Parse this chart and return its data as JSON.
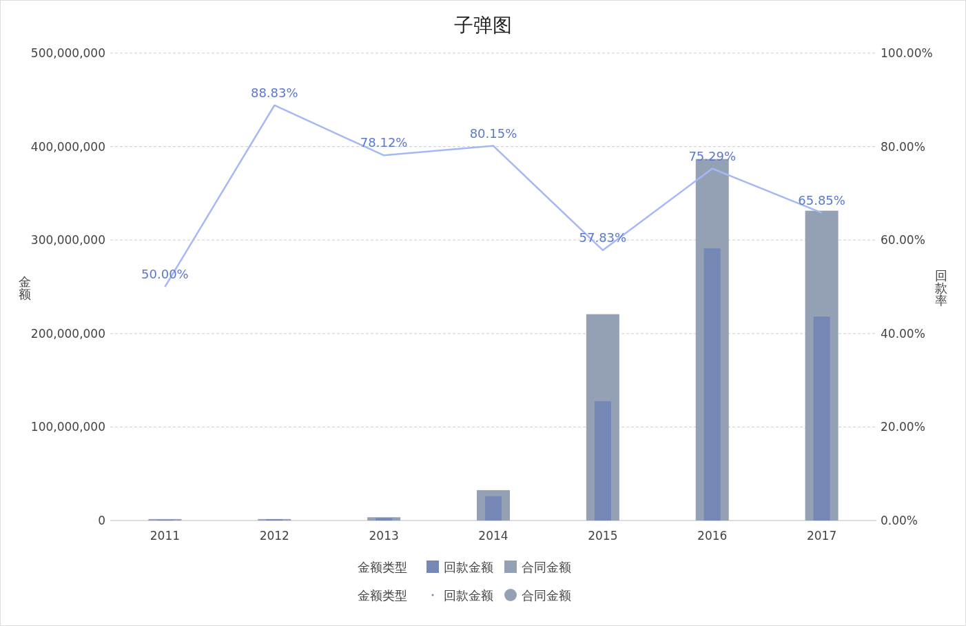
{
  "chart_data": {
    "type": "bar",
    "title": "子弹图",
    "ylabel": "金额",
    "y2label": "回款率",
    "legend_title": "金额类型",
    "legend": "bottom",
    "grid": "y",
    "categories": [
      "2011",
      "2012",
      "2013",
      "2014",
      "2015",
      "2016",
      "2017"
    ],
    "series": [
      {
        "name": "回款金额",
        "color": "#7588b5",
        "values": [
          800000,
          1400000,
          2700000,
          26000000,
          127600000,
          291100000,
          218200000
        ]
      },
      {
        "name": "合同金额",
        "color": "#94a0b3",
        "values": [
          1600000,
          1600000,
          3500000,
          32500000,
          220700000,
          386700000,
          331400000
        ]
      },
      {
        "type": "line",
        "axis": "y2",
        "color": "#a5b8f5",
        "values": [
          50.0,
          88.83,
          78.12,
          80.15,
          57.83,
          75.29,
          65.85
        ],
        "value_labels": [
          "50.00%",
          "88.83%",
          "78.12%",
          "80.15%",
          "57.83%",
          "75.29%",
          "65.85%"
        ]
      }
    ],
    "ylim": [
      0,
      500000000
    ],
    "yticks": [
      {
        "value": 0,
        "label": "0"
      },
      {
        "value": 100000000,
        "label": "100,000,000"
      },
      {
        "value": 200000000,
        "label": "200,000,000"
      },
      {
        "value": 300000000,
        "label": "300,000,000"
      },
      {
        "value": 400000000,
        "label": "400,000,000"
      },
      {
        "value": 500000000,
        "label": "500,000,000"
      }
    ],
    "y2lim": [
      0,
      100
    ],
    "y2ticks": [
      {
        "value": 0,
        "label": "0.00%"
      },
      {
        "value": 20,
        "label": "20.00%"
      },
      {
        "value": 40,
        "label": "40.00%"
      },
      {
        "value": 60,
        "label": "60.00%"
      },
      {
        "value": 80,
        "label": "80.00%"
      },
      {
        "value": 100,
        "label": "100.00%"
      }
    ]
  }
}
